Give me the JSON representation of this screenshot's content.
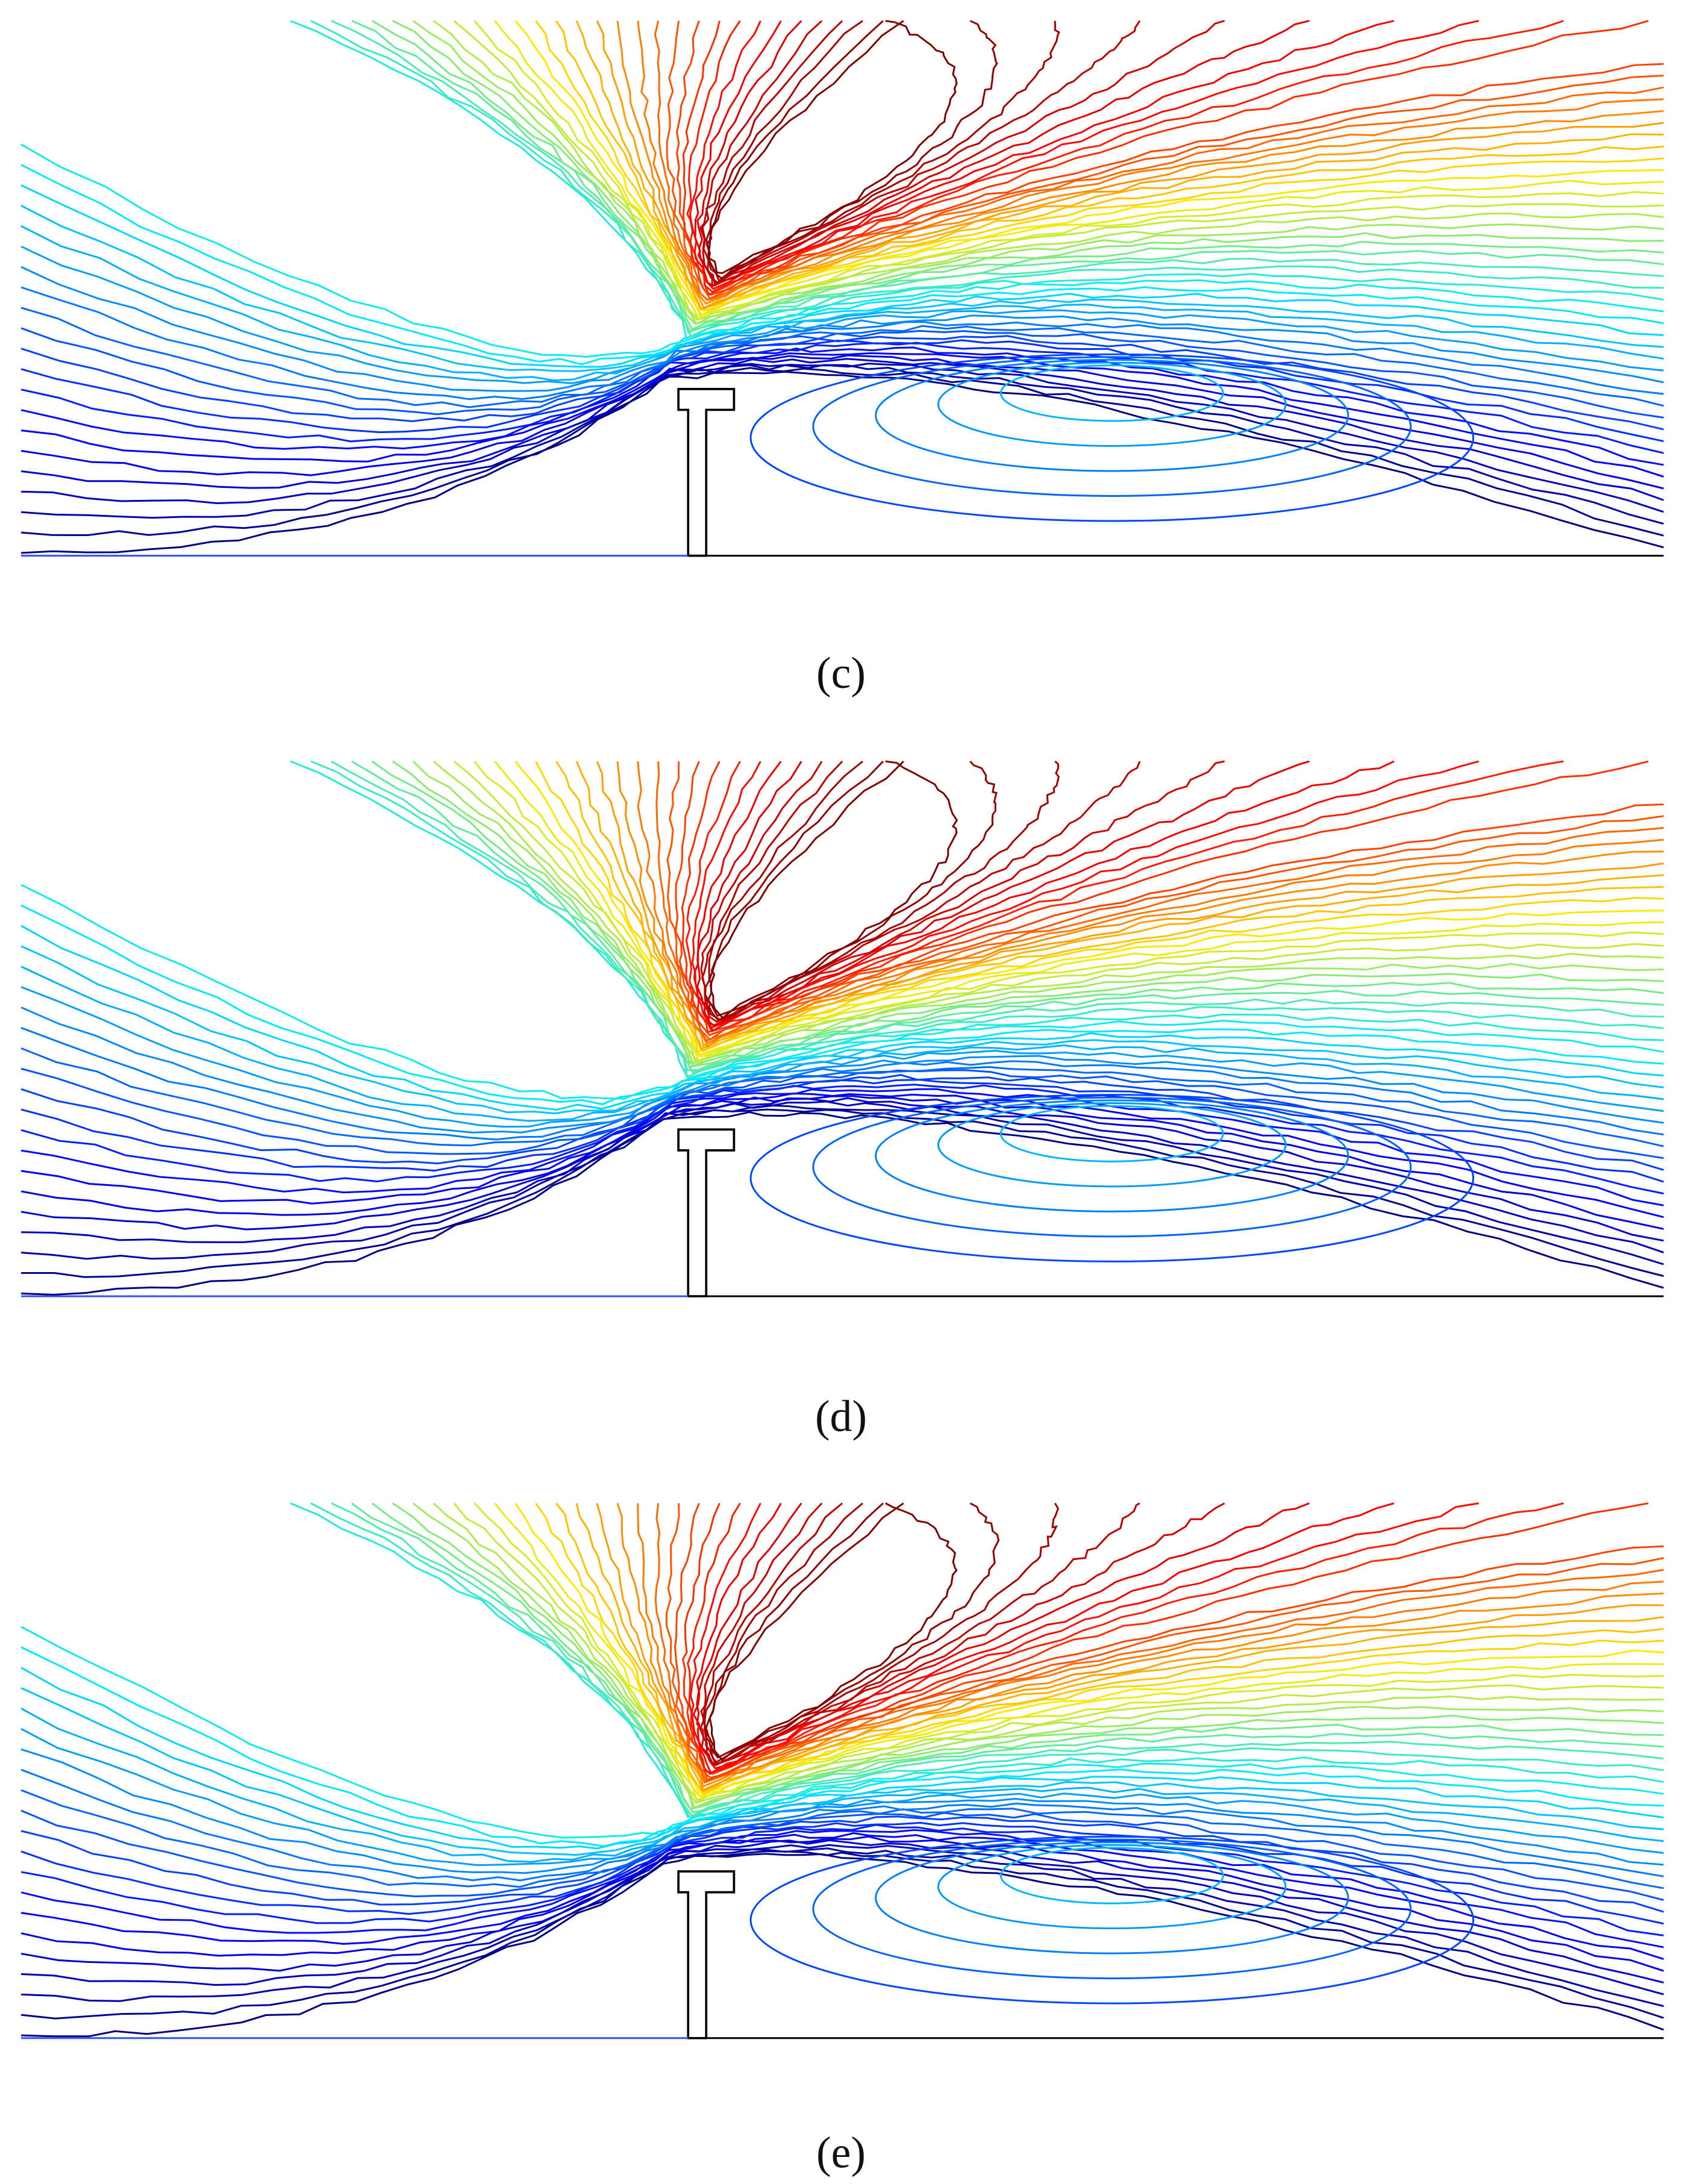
{
  "panels": [
    {
      "label": "(c)"
    },
    {
      "label": "(d)"
    },
    {
      "label": "(e)"
    }
  ]
}
